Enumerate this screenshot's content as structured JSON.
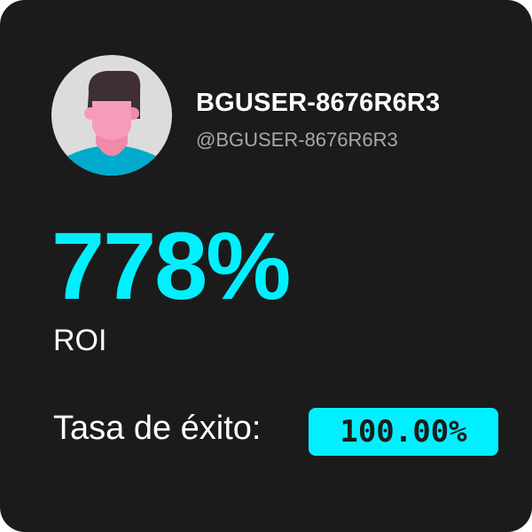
{
  "profile": {
    "avatar_icon": "user-avatar-icon",
    "display_name": "BGUSER-8676R6R3",
    "handle": "@BGUSER-8676R6R3"
  },
  "stats": {
    "roi_value": "778%",
    "roi_label": "ROI",
    "success_rate_label": "Tasa de éxito:",
    "success_rate_value": "100.00%"
  },
  "colors": {
    "accent": "#00f0ff",
    "background": "#1b1b1b"
  }
}
